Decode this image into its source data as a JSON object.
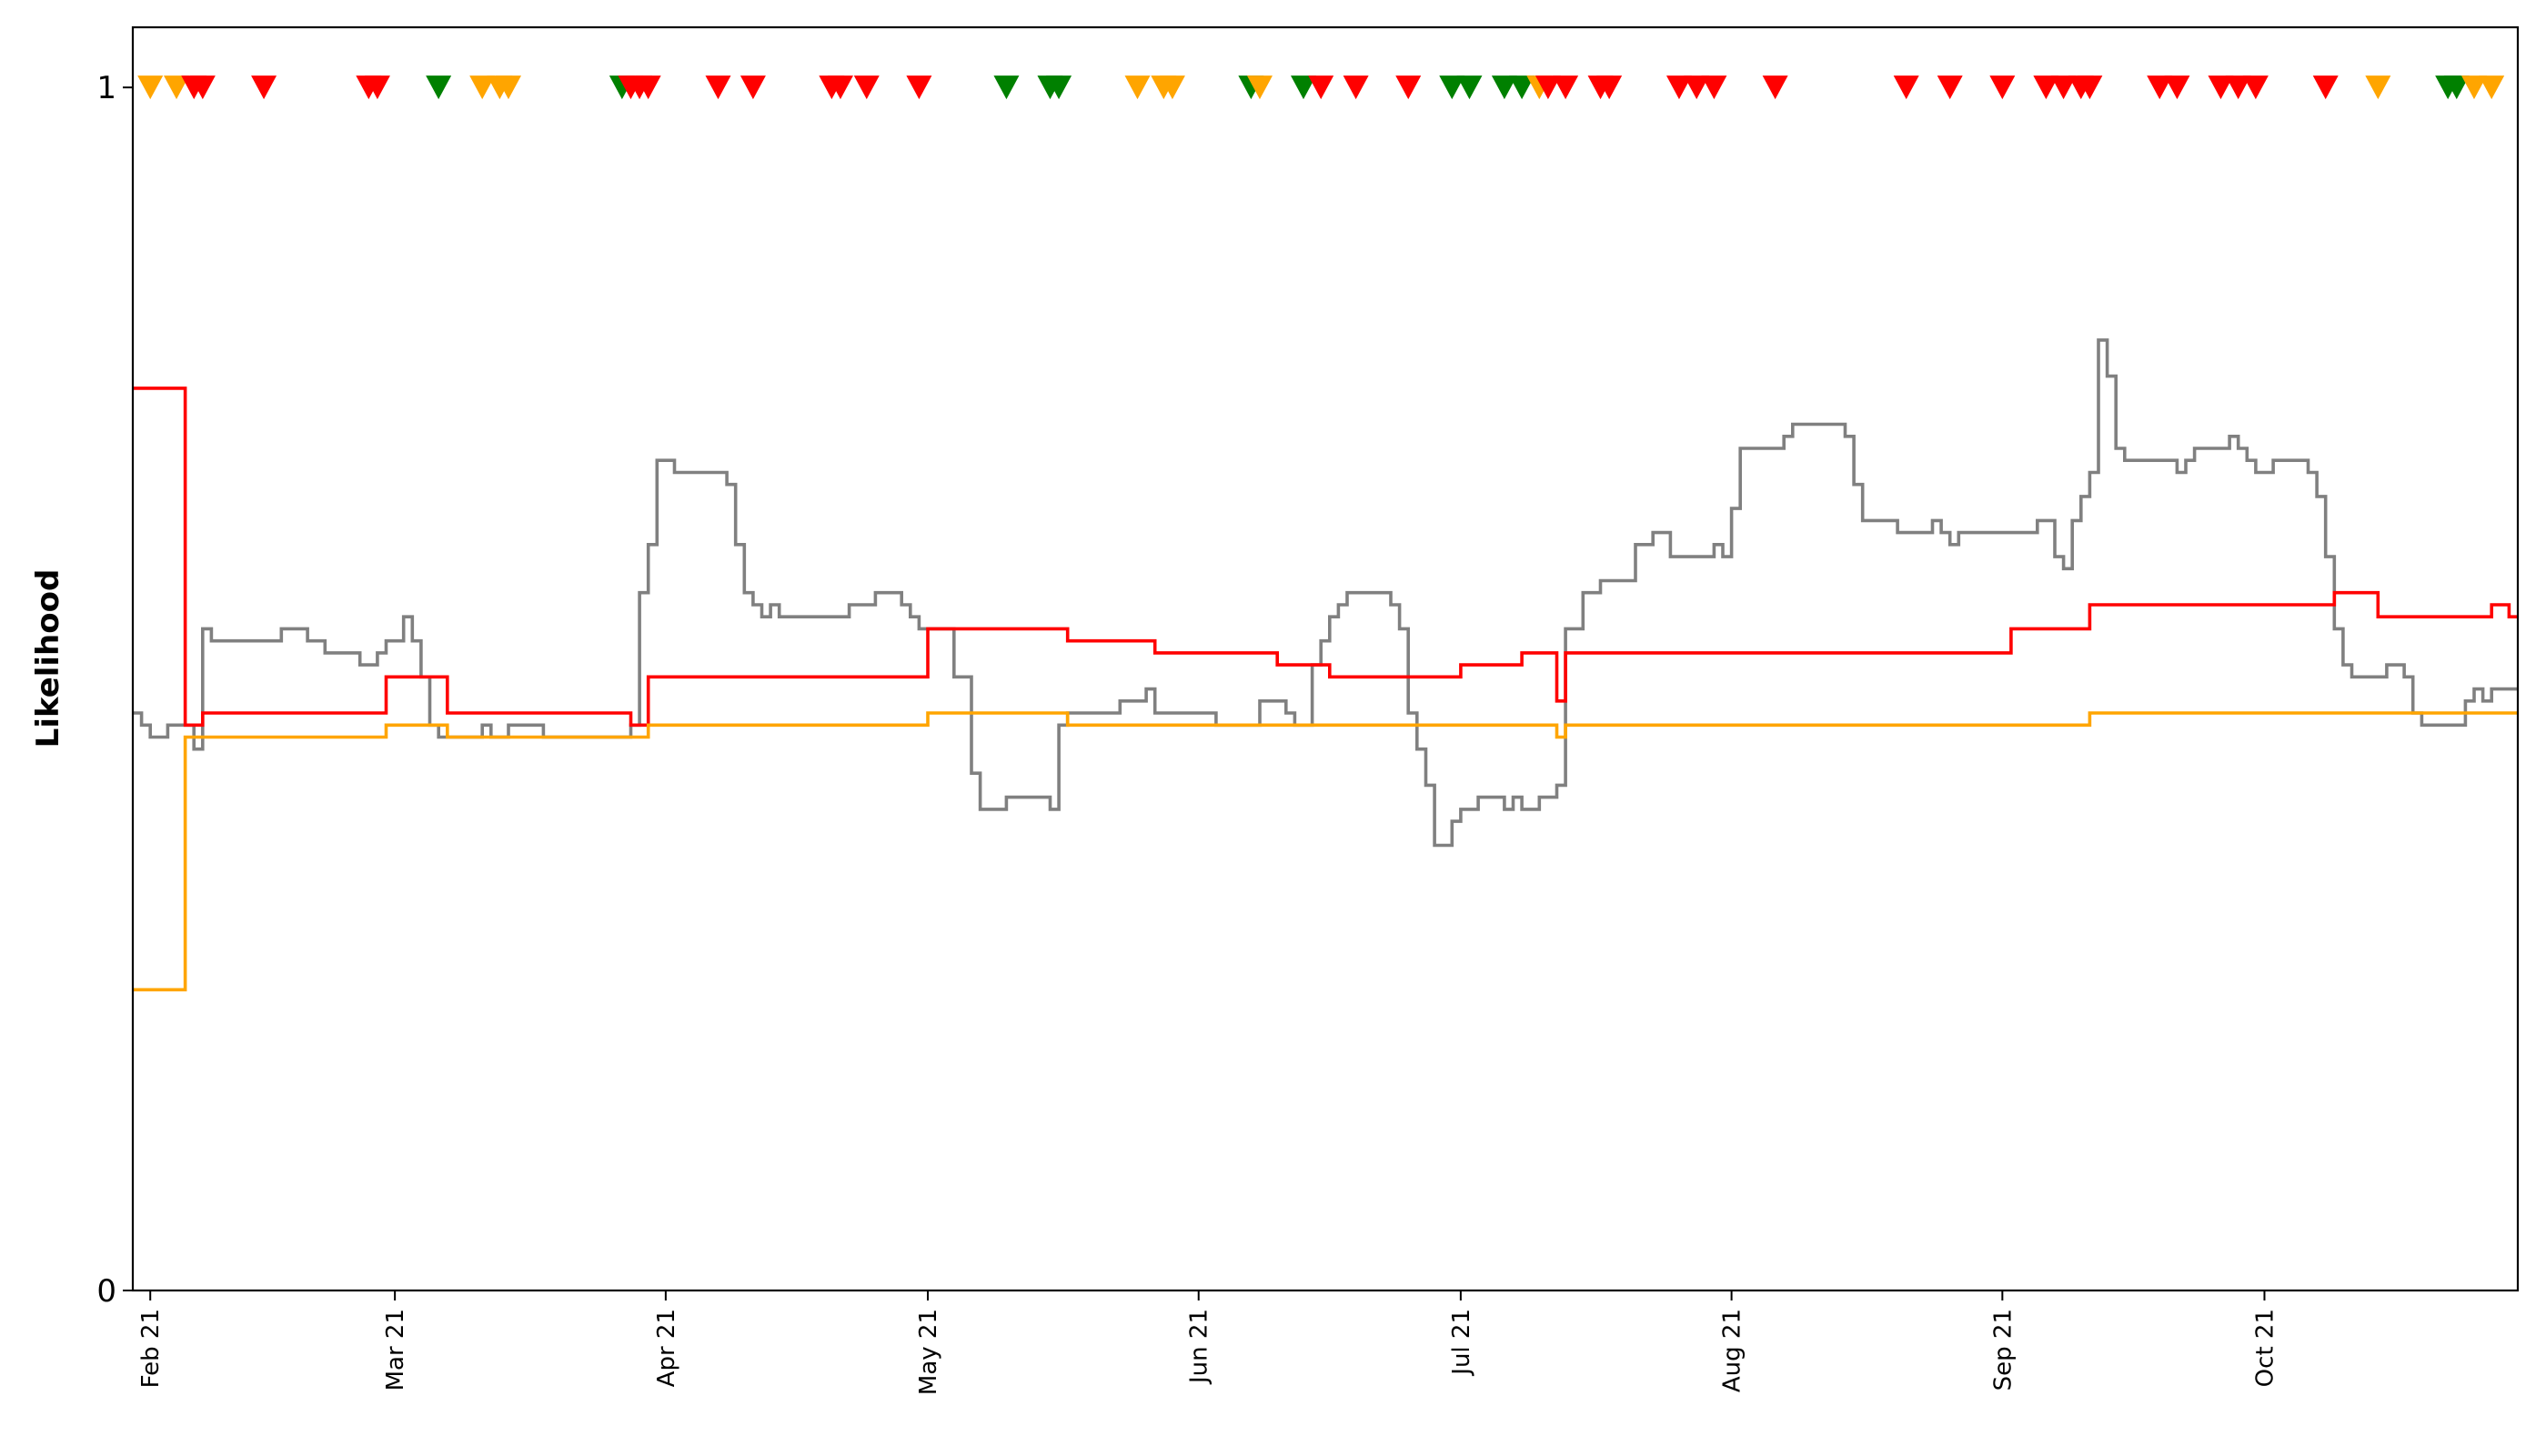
{
  "chart_data": {
    "type": "line",
    "title": "",
    "xlabel": "",
    "ylabel": "Likelihood",
    "x_range": [
      "2021-01-30",
      "2021-10-30"
    ],
    "ylim": [
      0,
      1.05
    ],
    "grid": false,
    "legend": "none",
    "y_ticks": [
      {
        "value": 0,
        "label": "0"
      },
      {
        "value": 1,
        "label": "1"
      }
    ],
    "x_ticks": [
      {
        "date": "2021-02-01",
        "label": "Feb 21"
      },
      {
        "date": "2021-03-01",
        "label": "Mar 21"
      },
      {
        "date": "2021-04-01",
        "label": "Apr 21"
      },
      {
        "date": "2021-05-01",
        "label": "May 21"
      },
      {
        "date": "2021-06-01",
        "label": "Jun 21"
      },
      {
        "date": "2021-07-01",
        "label": "Jul 21"
      },
      {
        "date": "2021-08-01",
        "label": "Aug 21"
      },
      {
        "date": "2021-09-01",
        "label": "Sep 21"
      },
      {
        "date": "2021-10-01",
        "label": "Oct 21"
      }
    ],
    "series": [
      {
        "color": "#808080",
        "interpolation": "step",
        "points": [
          [
            "2021-01-30",
            0.48
          ],
          [
            "2021-01-31",
            0.47
          ],
          [
            "2021-02-01",
            0.46
          ],
          [
            "2021-02-03",
            0.47
          ],
          [
            "2021-02-05",
            0.47
          ],
          [
            "2021-02-06",
            0.45
          ],
          [
            "2021-02-07",
            0.55
          ],
          [
            "2021-02-08",
            0.54
          ],
          [
            "2021-02-09",
            0.54
          ],
          [
            "2021-02-13",
            0.54
          ],
          [
            "2021-02-16",
            0.55
          ],
          [
            "2021-02-19",
            0.54
          ],
          [
            "2021-02-21",
            0.53
          ],
          [
            "2021-02-25",
            0.52
          ],
          [
            "2021-02-27",
            0.53
          ],
          [
            "2021-02-28",
            0.54
          ],
          [
            "2021-03-02",
            0.56
          ],
          [
            "2021-03-03",
            0.54
          ],
          [
            "2021-03-04",
            0.51
          ],
          [
            "2021-03-05",
            0.47
          ],
          [
            "2021-03-06",
            0.46
          ],
          [
            "2021-03-11",
            0.47
          ],
          [
            "2021-03-12",
            0.46
          ],
          [
            "2021-03-14",
            0.47
          ],
          [
            "2021-03-18",
            0.46
          ],
          [
            "2021-03-20",
            0.46
          ],
          [
            "2021-03-28",
            0.47
          ],
          [
            "2021-03-29",
            0.58
          ],
          [
            "2021-03-30",
            0.62
          ],
          [
            "2021-03-31",
            0.69
          ],
          [
            "2021-04-02",
            0.68
          ],
          [
            "2021-04-08",
            0.67
          ],
          [
            "2021-04-09",
            0.62
          ],
          [
            "2021-04-10",
            0.58
          ],
          [
            "2021-04-11",
            0.57
          ],
          [
            "2021-04-12",
            0.56
          ],
          [
            "2021-04-13",
            0.57
          ],
          [
            "2021-04-14",
            0.56
          ],
          [
            "2021-04-22",
            0.57
          ],
          [
            "2021-04-24",
            0.57
          ],
          [
            "2021-04-25",
            0.58
          ],
          [
            "2021-04-28",
            0.57
          ],
          [
            "2021-04-29",
            0.56
          ],
          [
            "2021-04-30",
            0.55
          ],
          [
            "2021-05-02",
            0.55
          ],
          [
            "2021-05-04",
            0.51
          ],
          [
            "2021-05-06",
            0.43
          ],
          [
            "2021-05-07",
            0.4
          ],
          [
            "2021-05-10",
            0.41
          ],
          [
            "2021-05-15",
            0.4
          ],
          [
            "2021-05-16",
            0.47
          ],
          [
            "2021-05-17",
            0.48
          ],
          [
            "2021-05-22",
            0.48
          ],
          [
            "2021-05-23",
            0.49
          ],
          [
            "2021-05-25",
            0.49
          ],
          [
            "2021-05-26",
            0.5
          ],
          [
            "2021-05-27",
            0.48
          ],
          [
            "2021-05-28",
            0.48
          ],
          [
            "2021-06-03",
            0.47
          ],
          [
            "2021-06-06",
            0.47
          ],
          [
            "2021-06-08",
            0.49
          ],
          [
            "2021-06-10",
            0.49
          ],
          [
            "2021-06-11",
            0.48
          ],
          [
            "2021-06-12",
            0.47
          ],
          [
            "2021-06-13",
            0.47
          ],
          [
            "2021-06-14",
            0.52
          ],
          [
            "2021-06-15",
            0.54
          ],
          [
            "2021-06-16",
            0.56
          ],
          [
            "2021-06-17",
            0.57
          ],
          [
            "2021-06-18",
            0.58
          ],
          [
            "2021-06-23",
            0.57
          ],
          [
            "2021-06-24",
            0.55
          ],
          [
            "2021-06-25",
            0.48
          ],
          [
            "2021-06-26",
            0.45
          ],
          [
            "2021-06-27",
            0.42
          ],
          [
            "2021-06-28",
            0.37
          ],
          [
            "2021-06-30",
            0.39
          ],
          [
            "2021-07-01",
            0.4
          ],
          [
            "2021-07-03",
            0.41
          ],
          [
            "2021-07-06",
            0.4
          ],
          [
            "2021-07-07",
            0.41
          ],
          [
            "2021-07-08",
            0.4
          ],
          [
            "2021-07-10",
            0.41
          ],
          [
            "2021-07-11",
            0.41
          ],
          [
            "2021-07-12",
            0.42
          ],
          [
            "2021-07-13",
            0.55
          ],
          [
            "2021-07-15",
            0.58
          ],
          [
            "2021-07-17",
            0.59
          ],
          [
            "2021-07-20",
            0.59
          ],
          [
            "2021-07-21",
            0.62
          ],
          [
            "2021-07-23",
            0.63
          ],
          [
            "2021-07-25",
            0.61
          ],
          [
            "2021-07-28",
            0.61
          ],
          [
            "2021-07-30",
            0.62
          ],
          [
            "2021-07-31",
            0.61
          ],
          [
            "2021-08-01",
            0.65
          ],
          [
            "2021-08-02",
            0.7
          ],
          [
            "2021-08-07",
            0.71
          ],
          [
            "2021-08-08",
            0.72
          ],
          [
            "2021-08-14",
            0.71
          ],
          [
            "2021-08-15",
            0.67
          ],
          [
            "2021-08-16",
            0.64
          ],
          [
            "2021-08-20",
            0.63
          ],
          [
            "2021-08-21",
            0.63
          ],
          [
            "2021-08-24",
            0.64
          ],
          [
            "2021-08-25",
            0.63
          ],
          [
            "2021-08-26",
            0.62
          ],
          [
            "2021-08-27",
            0.63
          ],
          [
            "2021-08-28",
            0.63
          ],
          [
            "2021-09-03",
            0.63
          ],
          [
            "2021-09-05",
            0.64
          ],
          [
            "2021-09-06",
            0.64
          ],
          [
            "2021-09-07",
            0.61
          ],
          [
            "2021-09-08",
            0.6
          ],
          [
            "2021-09-09",
            0.64
          ],
          [
            "2021-09-10",
            0.66
          ],
          [
            "2021-09-11",
            0.68
          ],
          [
            "2021-09-12",
            0.79
          ],
          [
            "2021-09-13",
            0.76
          ],
          [
            "2021-09-14",
            0.7
          ],
          [
            "2021-09-15",
            0.69
          ],
          [
            "2021-09-21",
            0.68
          ],
          [
            "2021-09-22",
            0.69
          ],
          [
            "2021-09-23",
            0.7
          ],
          [
            "2021-09-26",
            0.7
          ],
          [
            "2021-09-27",
            0.71
          ],
          [
            "2021-09-28",
            0.7
          ],
          [
            "2021-09-29",
            0.69
          ],
          [
            "2021-09-30",
            0.68
          ],
          [
            "2021-10-01",
            0.68
          ],
          [
            "2021-10-02",
            0.69
          ],
          [
            "2021-10-06",
            0.68
          ],
          [
            "2021-10-07",
            0.66
          ],
          [
            "2021-10-08",
            0.61
          ],
          [
            "2021-10-09",
            0.55
          ],
          [
            "2021-10-10",
            0.52
          ],
          [
            "2021-10-11",
            0.51
          ],
          [
            "2021-10-13",
            0.51
          ],
          [
            "2021-10-15",
            0.52
          ],
          [
            "2021-10-16",
            0.52
          ],
          [
            "2021-10-17",
            0.51
          ],
          [
            "2021-10-18",
            0.48
          ],
          [
            "2021-10-19",
            0.47
          ],
          [
            "2021-10-24",
            0.49
          ],
          [
            "2021-10-25",
            0.5
          ],
          [
            "2021-10-26",
            0.49
          ],
          [
            "2021-10-27",
            0.5
          ],
          [
            "2021-10-29",
            0.5
          ],
          [
            "2021-10-30",
            0.5
          ]
        ]
      },
      {
        "color": "#ff0000",
        "interpolation": "step",
        "points": [
          [
            "2021-01-30",
            0.75
          ],
          [
            "2021-02-05",
            0.47
          ],
          [
            "2021-02-07",
            0.48
          ],
          [
            "2021-02-28",
            0.51
          ],
          [
            "2021-03-07",
            0.48
          ],
          [
            "2021-03-28",
            0.47
          ],
          [
            "2021-03-30",
            0.51
          ],
          [
            "2021-05-01",
            0.55
          ],
          [
            "2021-05-17",
            0.54
          ],
          [
            "2021-05-27",
            0.53
          ],
          [
            "2021-06-10",
            0.52
          ],
          [
            "2021-06-16",
            0.51
          ],
          [
            "2021-07-01",
            0.52
          ],
          [
            "2021-07-08",
            0.53
          ],
          [
            "2021-07-12",
            0.49
          ],
          [
            "2021-07-13",
            0.53
          ],
          [
            "2021-09-02",
            0.55
          ],
          [
            "2021-09-11",
            0.57
          ],
          [
            "2021-10-09",
            0.58
          ],
          [
            "2021-10-14",
            0.56
          ],
          [
            "2021-10-27",
            0.57
          ],
          [
            "2021-10-29",
            0.56
          ],
          [
            "2021-10-30",
            0.56
          ]
        ]
      },
      {
        "color": "#ffa500",
        "interpolation": "step",
        "points": [
          [
            "2021-01-30",
            0.25
          ],
          [
            "2021-02-05",
            0.46
          ],
          [
            "2021-02-28",
            0.47
          ],
          [
            "2021-03-07",
            0.46
          ],
          [
            "2021-03-30",
            0.47
          ],
          [
            "2021-05-01",
            0.48
          ],
          [
            "2021-05-17",
            0.47
          ],
          [
            "2021-07-12",
            0.46
          ],
          [
            "2021-07-13",
            0.47
          ],
          [
            "2021-09-11",
            0.48
          ],
          [
            "2021-10-30",
            0.48
          ]
        ]
      }
    ],
    "event_markers": {
      "y": 1,
      "shape": "down-triangle",
      "points": [
        {
          "date": "2021-02-01",
          "color": "#ffa500"
        },
        {
          "date": "2021-02-04",
          "color": "#ffa500"
        },
        {
          "date": "2021-02-06",
          "color": "#ff0000"
        },
        {
          "date": "2021-02-07",
          "color": "#ff0000"
        },
        {
          "date": "2021-02-14",
          "color": "#ff0000"
        },
        {
          "date": "2021-02-26",
          "color": "#ff0000"
        },
        {
          "date": "2021-02-27",
          "color": "#ff0000"
        },
        {
          "date": "2021-03-06",
          "color": "#008000"
        },
        {
          "date": "2021-03-11",
          "color": "#ffa500"
        },
        {
          "date": "2021-03-13",
          "color": "#ffa500"
        },
        {
          "date": "2021-03-14",
          "color": "#ffa500"
        },
        {
          "date": "2021-03-27",
          "color": "#008000"
        },
        {
          "date": "2021-03-28",
          "color": "#ff0000"
        },
        {
          "date": "2021-03-29",
          "color": "#ff0000"
        },
        {
          "date": "2021-03-30",
          "color": "#ff0000"
        },
        {
          "date": "2021-04-07",
          "color": "#ff0000"
        },
        {
          "date": "2021-04-11",
          "color": "#ff0000"
        },
        {
          "date": "2021-04-20",
          "color": "#ff0000"
        },
        {
          "date": "2021-04-21",
          "color": "#ff0000"
        },
        {
          "date": "2021-04-24",
          "color": "#ff0000"
        },
        {
          "date": "2021-04-30",
          "color": "#ff0000"
        },
        {
          "date": "2021-05-10",
          "color": "#008000"
        },
        {
          "date": "2021-05-15",
          "color": "#008000"
        },
        {
          "date": "2021-05-16",
          "color": "#008000"
        },
        {
          "date": "2021-05-25",
          "color": "#ffa500"
        },
        {
          "date": "2021-05-28",
          "color": "#ffa500"
        },
        {
          "date": "2021-05-29",
          "color": "#ffa500"
        },
        {
          "date": "2021-06-07",
          "color": "#008000"
        },
        {
          "date": "2021-06-08",
          "color": "#ffa500"
        },
        {
          "date": "2021-06-13",
          "color": "#008000"
        },
        {
          "date": "2021-06-15",
          "color": "#ff0000"
        },
        {
          "date": "2021-06-19",
          "color": "#ff0000"
        },
        {
          "date": "2021-06-25",
          "color": "#ff0000"
        },
        {
          "date": "2021-06-30",
          "color": "#008000"
        },
        {
          "date": "2021-07-02",
          "color": "#008000"
        },
        {
          "date": "2021-07-06",
          "color": "#008000"
        },
        {
          "date": "2021-07-08",
          "color": "#008000"
        },
        {
          "date": "2021-07-10",
          "color": "#ffa500"
        },
        {
          "date": "2021-07-11",
          "color": "#ff0000"
        },
        {
          "date": "2021-07-13",
          "color": "#ff0000"
        },
        {
          "date": "2021-07-17",
          "color": "#ff0000"
        },
        {
          "date": "2021-07-18",
          "color": "#ff0000"
        },
        {
          "date": "2021-07-26",
          "color": "#ff0000"
        },
        {
          "date": "2021-07-28",
          "color": "#ff0000"
        },
        {
          "date": "2021-07-30",
          "color": "#ff0000"
        },
        {
          "date": "2021-08-06",
          "color": "#ff0000"
        },
        {
          "date": "2021-08-21",
          "color": "#ff0000"
        },
        {
          "date": "2021-08-26",
          "color": "#ff0000"
        },
        {
          "date": "2021-09-01",
          "color": "#ff0000"
        },
        {
          "date": "2021-09-06",
          "color": "#ff0000"
        },
        {
          "date": "2021-09-08",
          "color": "#ff0000"
        },
        {
          "date": "2021-09-10",
          "color": "#ff0000"
        },
        {
          "date": "2021-09-11",
          "color": "#ff0000"
        },
        {
          "date": "2021-09-19",
          "color": "#ff0000"
        },
        {
          "date": "2021-09-21",
          "color": "#ff0000"
        },
        {
          "date": "2021-09-26",
          "color": "#ff0000"
        },
        {
          "date": "2021-09-28",
          "color": "#ff0000"
        },
        {
          "date": "2021-09-30",
          "color": "#ff0000"
        },
        {
          "date": "2021-10-08",
          "color": "#ff0000"
        },
        {
          "date": "2021-10-14",
          "color": "#ffa500"
        },
        {
          "date": "2021-10-22",
          "color": "#008000"
        },
        {
          "date": "2021-10-23",
          "color": "#008000"
        },
        {
          "date": "2021-10-25",
          "color": "#ffa500"
        },
        {
          "date": "2021-10-27",
          "color": "#ffa500"
        }
      ]
    }
  }
}
